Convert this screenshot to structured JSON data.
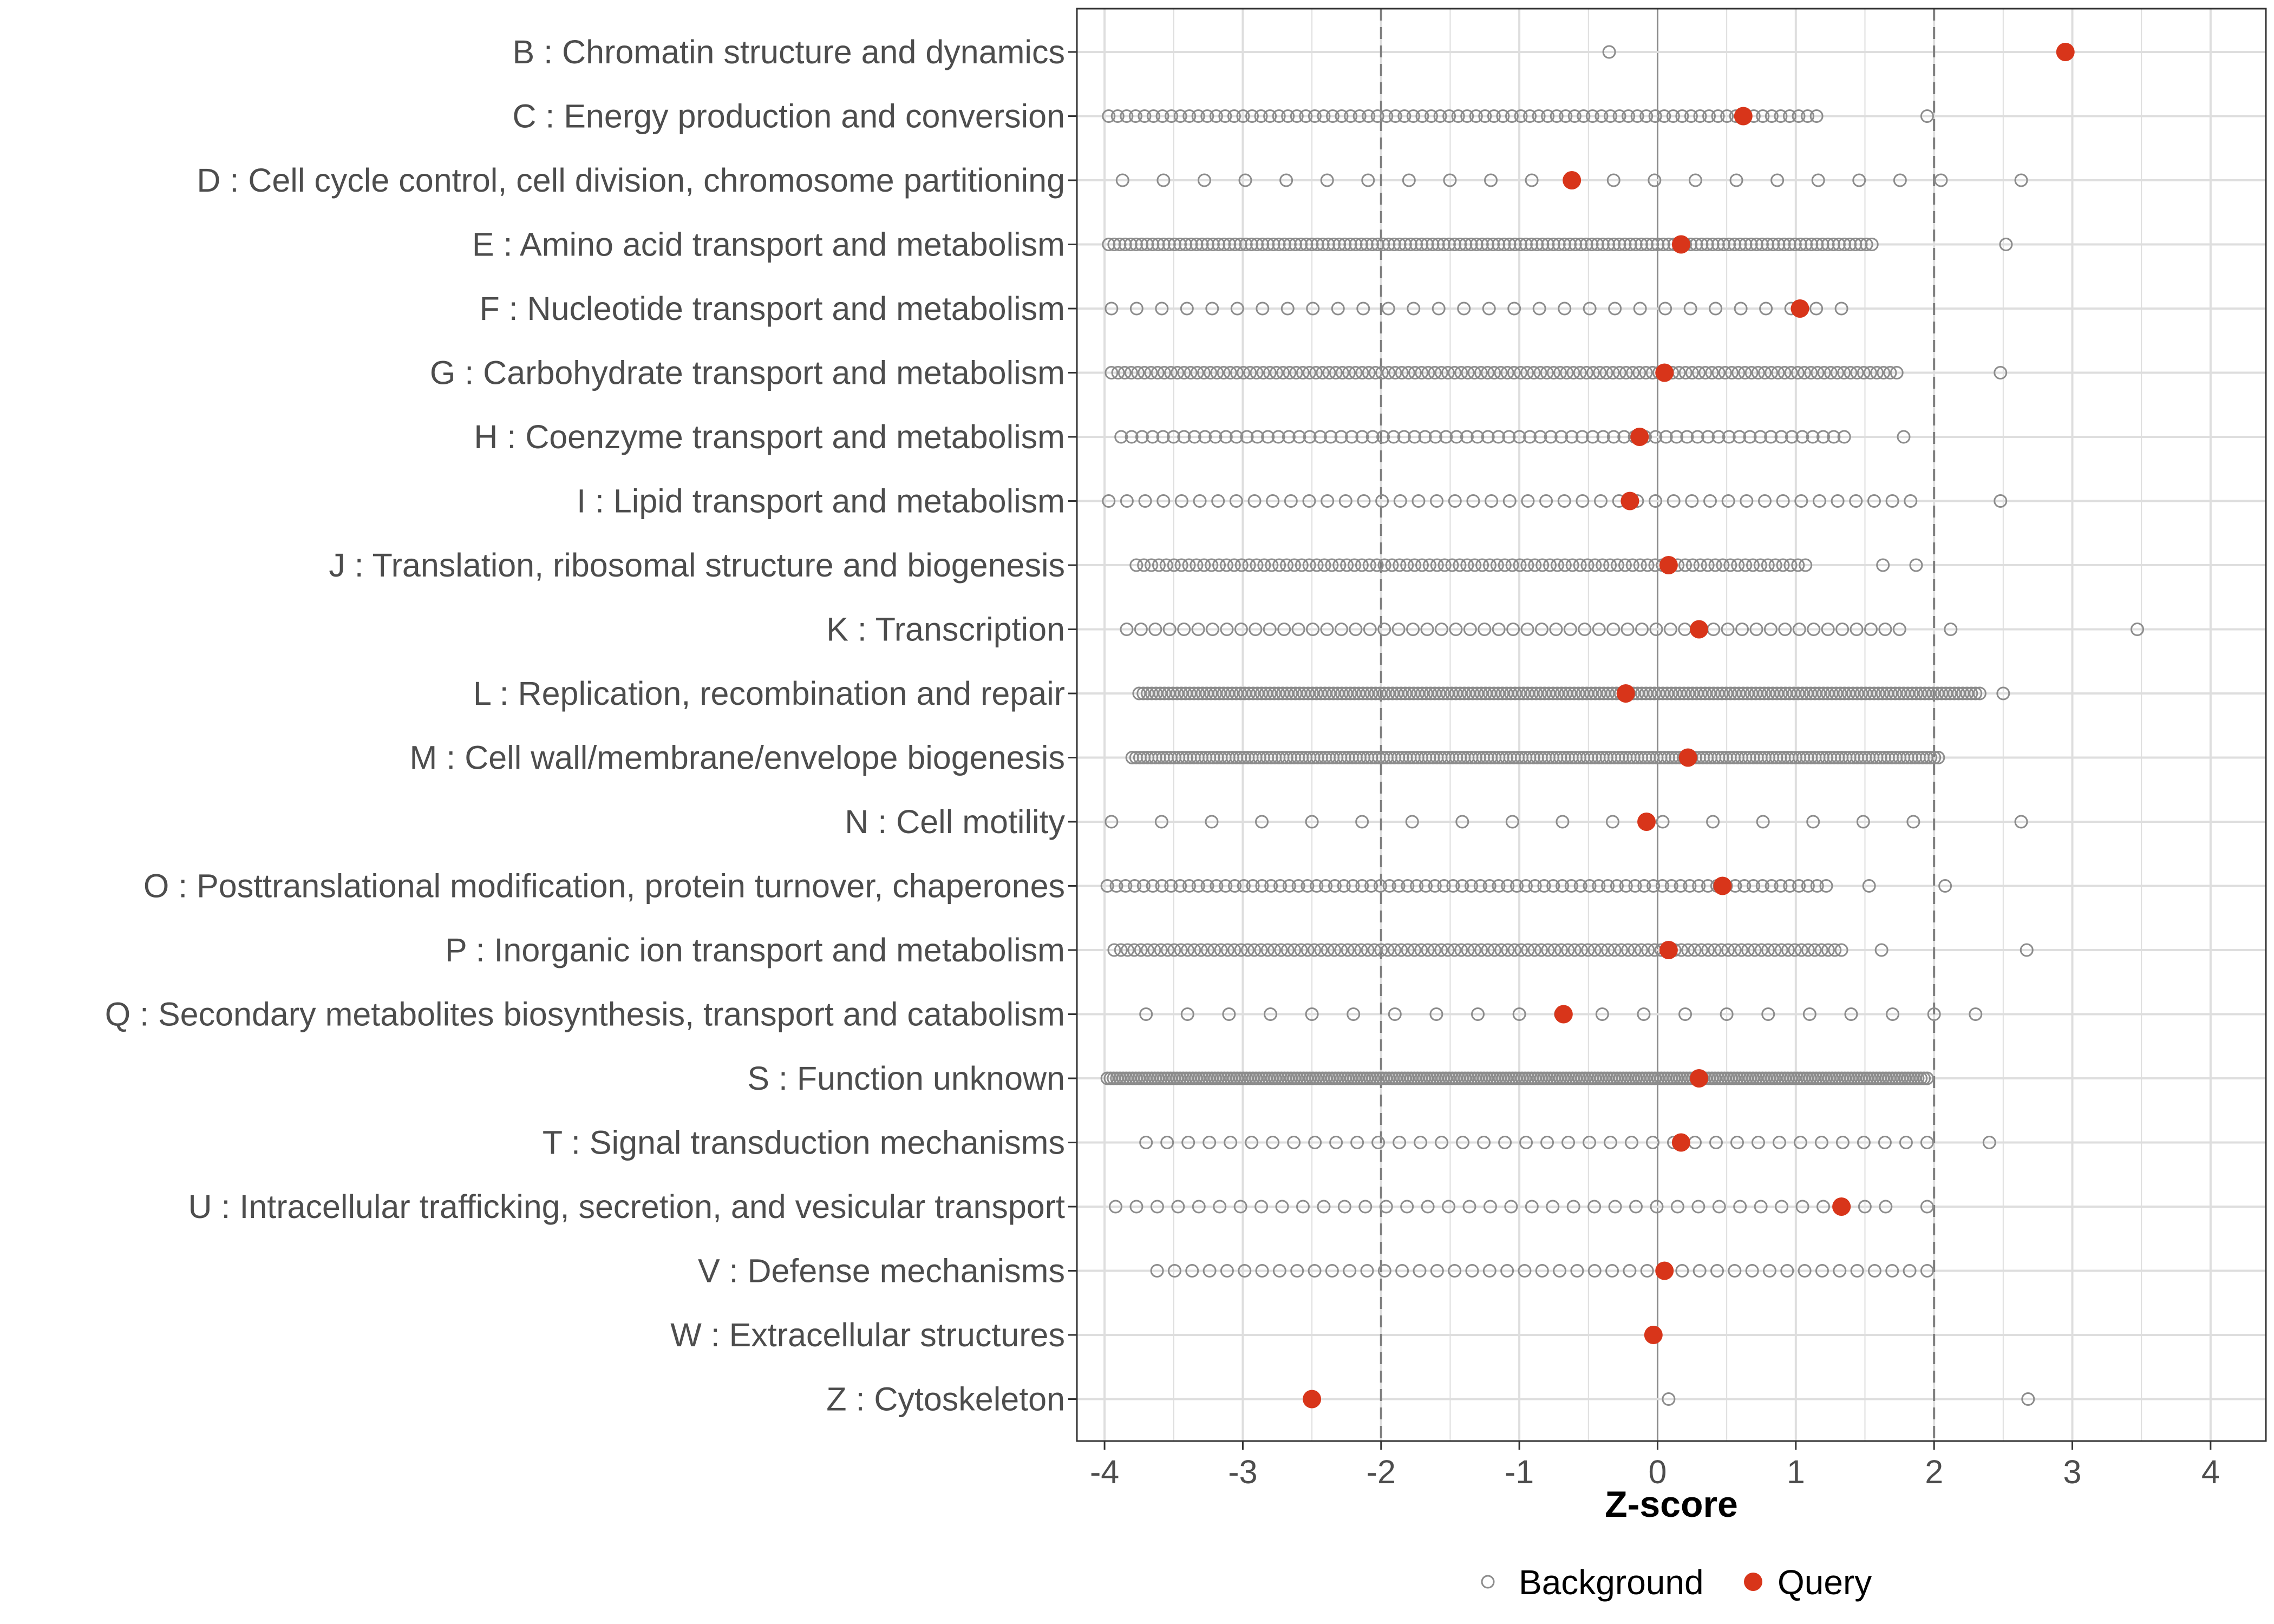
{
  "chart_data": {
    "type": "scatter",
    "xlabel": "Z-score",
    "ylabel": "",
    "xlim": [
      -4.2,
      4.4
    ],
    "x_ticks": [
      "-4",
      "-3",
      "-2",
      "-1",
      "0",
      "1",
      "2",
      "3",
      "4"
    ],
    "reference_lines": [
      -2,
      2
    ],
    "legend": {
      "position": "bottom",
      "entries": [
        "Background",
        "Query"
      ]
    },
    "colors": {
      "background": "#8c8c8c",
      "query": "#d8351a",
      "grid": "#dedede",
      "reference": "#7f7f7f",
      "axis": "#333333"
    },
    "categories": [
      {
        "label": "B : Chromatin structure and dynamics",
        "query": 2.95,
        "background_range": [
          -0.35,
          -0.35
        ],
        "background_count": 1,
        "background_extra": []
      },
      {
        "label": "C : Energy production and conversion",
        "query": 0.62,
        "background_range": [
          -3.97,
          1.15
        ],
        "background_count": 80,
        "background_extra": [
          1.95
        ]
      },
      {
        "label": "D : Cell cycle control, cell division, chromosome partitioning",
        "query": -0.62,
        "background_range": [
          -3.87,
          2.05
        ],
        "background_count": 21,
        "background_extra": [
          2.63
        ]
      },
      {
        "label": "E : Amino acid transport and metabolism",
        "query": 0.17,
        "background_range": [
          -3.97,
          1.55
        ],
        "background_count": 140,
        "background_extra": [
          2.52
        ]
      },
      {
        "label": "F : Nucleotide transport and metabolism",
        "query": 1.03,
        "background_range": [
          -3.95,
          1.33
        ],
        "background_count": 30,
        "background_extra": []
      },
      {
        "label": "G : Carbohydrate transport and metabolism",
        "query": 0.05,
        "background_range": [
          -3.95,
          1.73
        ],
        "background_count": 120,
        "background_extra": [
          2.48
        ]
      },
      {
        "label": "H : Coenzyme transport and metabolism",
        "query": -0.13,
        "background_range": [
          -3.88,
          1.35
        ],
        "background_count": 70,
        "background_extra": [
          1.78
        ]
      },
      {
        "label": "I : Lipid transport and metabolism",
        "query": -0.2,
        "background_range": [
          -3.97,
          1.83
        ],
        "background_count": 45,
        "background_extra": [
          2.48
        ]
      },
      {
        "label": "J : Translation, ribosomal structure and biogenesis",
        "query": 0.08,
        "background_range": [
          -3.77,
          1.07
        ],
        "background_count": 90,
        "background_extra": [
          1.63,
          1.87
        ]
      },
      {
        "label": "K : Transcription",
        "query": 0.3,
        "background_range": [
          -3.84,
          1.75
        ],
        "background_count": 55,
        "background_extra": [
          2.12,
          3.47
        ]
      },
      {
        "label": "L : Replication, recombination and repair",
        "query": -0.23,
        "background_range": [
          -3.75,
          2.33
        ],
        "background_count": 200,
        "background_extra": [
          2.5
        ]
      },
      {
        "label": "M : Cell wall/membrane/envelope biogenesis",
        "query": 0.22,
        "background_range": [
          -3.8,
          2.03
        ],
        "background_count": 210,
        "background_extra": []
      },
      {
        "label": "N : Cell motility",
        "query": -0.08,
        "background_range": [
          -3.95,
          1.85
        ],
        "background_count": 17,
        "background_extra": [
          2.63
        ]
      },
      {
        "label": "O : Posttranslational modification, protein turnover, chaperones",
        "query": 0.47,
        "background_range": [
          -3.98,
          1.22
        ],
        "background_count": 80,
        "background_extra": [
          1.53,
          2.08
        ]
      },
      {
        "label": "P : Inorganic ion transport and metabolism",
        "query": 0.08,
        "background_range": [
          -3.93,
          1.33
        ],
        "background_count": 110,
        "background_extra": [
          1.62,
          2.67
        ]
      },
      {
        "label": "Q : Secondary metabolites biosynthesis, transport and catabolism",
        "query": -0.68,
        "background_range": [
          -3.7,
          2.3
        ],
        "background_count": 21,
        "background_extra": []
      },
      {
        "label": "S : Function unknown",
        "query": 0.3,
        "background_range": [
          -3.98,
          1.95
        ],
        "background_count": 260,
        "background_extra": []
      },
      {
        "label": "T : Signal transduction mechanisms",
        "query": 0.17,
        "background_range": [
          -3.7,
          1.95
        ],
        "background_count": 38,
        "background_extra": [
          2.4
        ]
      },
      {
        "label": "U : Intracellular trafficking, secretion, and vesicular transport",
        "query": 1.33,
        "background_range": [
          -3.92,
          1.65
        ],
        "background_count": 38,
        "background_extra": [
          1.95
        ]
      },
      {
        "label": "V : Defense mechanisms",
        "query": 0.05,
        "background_range": [
          -3.62,
          1.95
        ],
        "background_count": 45,
        "background_extra": []
      },
      {
        "label": "W : Extracellular structures",
        "query": -0.03,
        "background_range": [
          -0.03,
          -0.03
        ],
        "background_count": 1,
        "background_extra": []
      },
      {
        "label": "Z : Cytoskeleton",
        "query": -2.5,
        "background_range": [
          0.08,
          0.08
        ],
        "background_count": 1,
        "background_extra": [
          2.68
        ]
      }
    ]
  }
}
